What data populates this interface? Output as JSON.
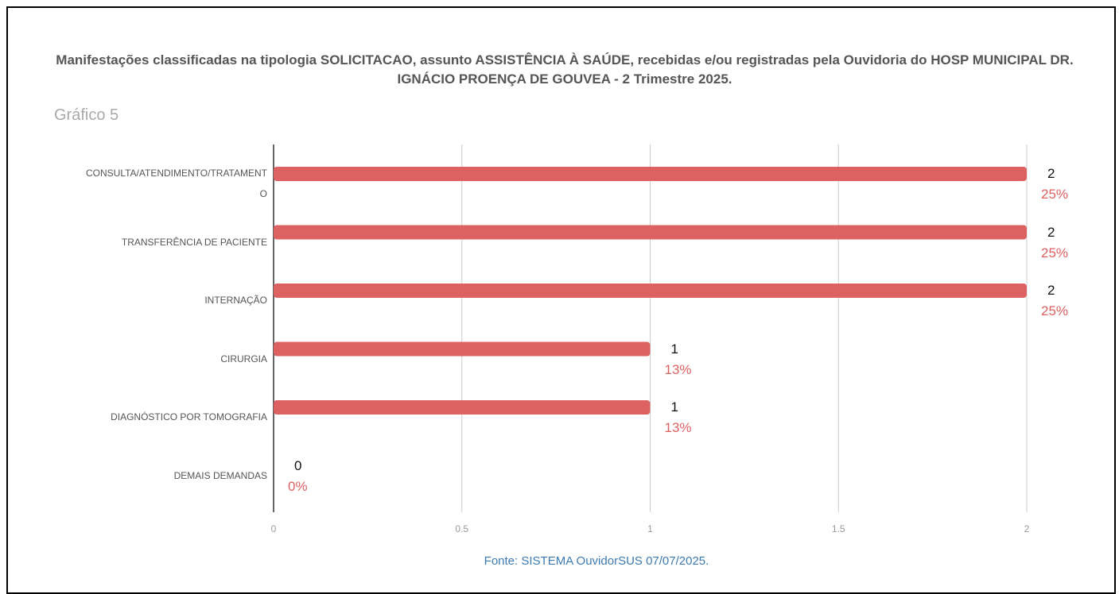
{
  "chart_data": {
    "type": "bar",
    "orientation": "horizontal",
    "title": "Manifestações classificadas na tipologia SOLICITACAO, assunto ASSISTÊNCIA À SAÚDE, recebidas e/ou registradas pela Ouvidoria do HOSP MUNICIPAL DR. IGNÁCIO PROENÇA DE GOUVEA - 2 Trimestre 2025.",
    "subtitle": "Gráfico 5",
    "source": "Fonte: SISTEMA OuvidorSUS 07/07/2025.",
    "categories": [
      "CONSULTA/ATENDIMENTO/TRATAMENTO",
      "TRANSFERÊNCIA DE PACIENTE",
      "INTERNAÇÃO",
      "CIRURGIA",
      "DIAGNÓSTICO POR TOMOGRAFIA",
      "DEMAIS DEMANDAS"
    ],
    "values": [
      2,
      2,
      2,
      1,
      1,
      0
    ],
    "percent_values": [
      25,
      25,
      25,
      13,
      13,
      0
    ],
    "percent_labels": [
      "25%",
      "25%",
      "25%",
      "13%",
      "13%",
      "0%"
    ],
    "color": "#dd6161",
    "xlim": [
      0,
      2
    ],
    "xticks": [
      0,
      0.5,
      1,
      1.5,
      2
    ],
    "grid": true
  }
}
